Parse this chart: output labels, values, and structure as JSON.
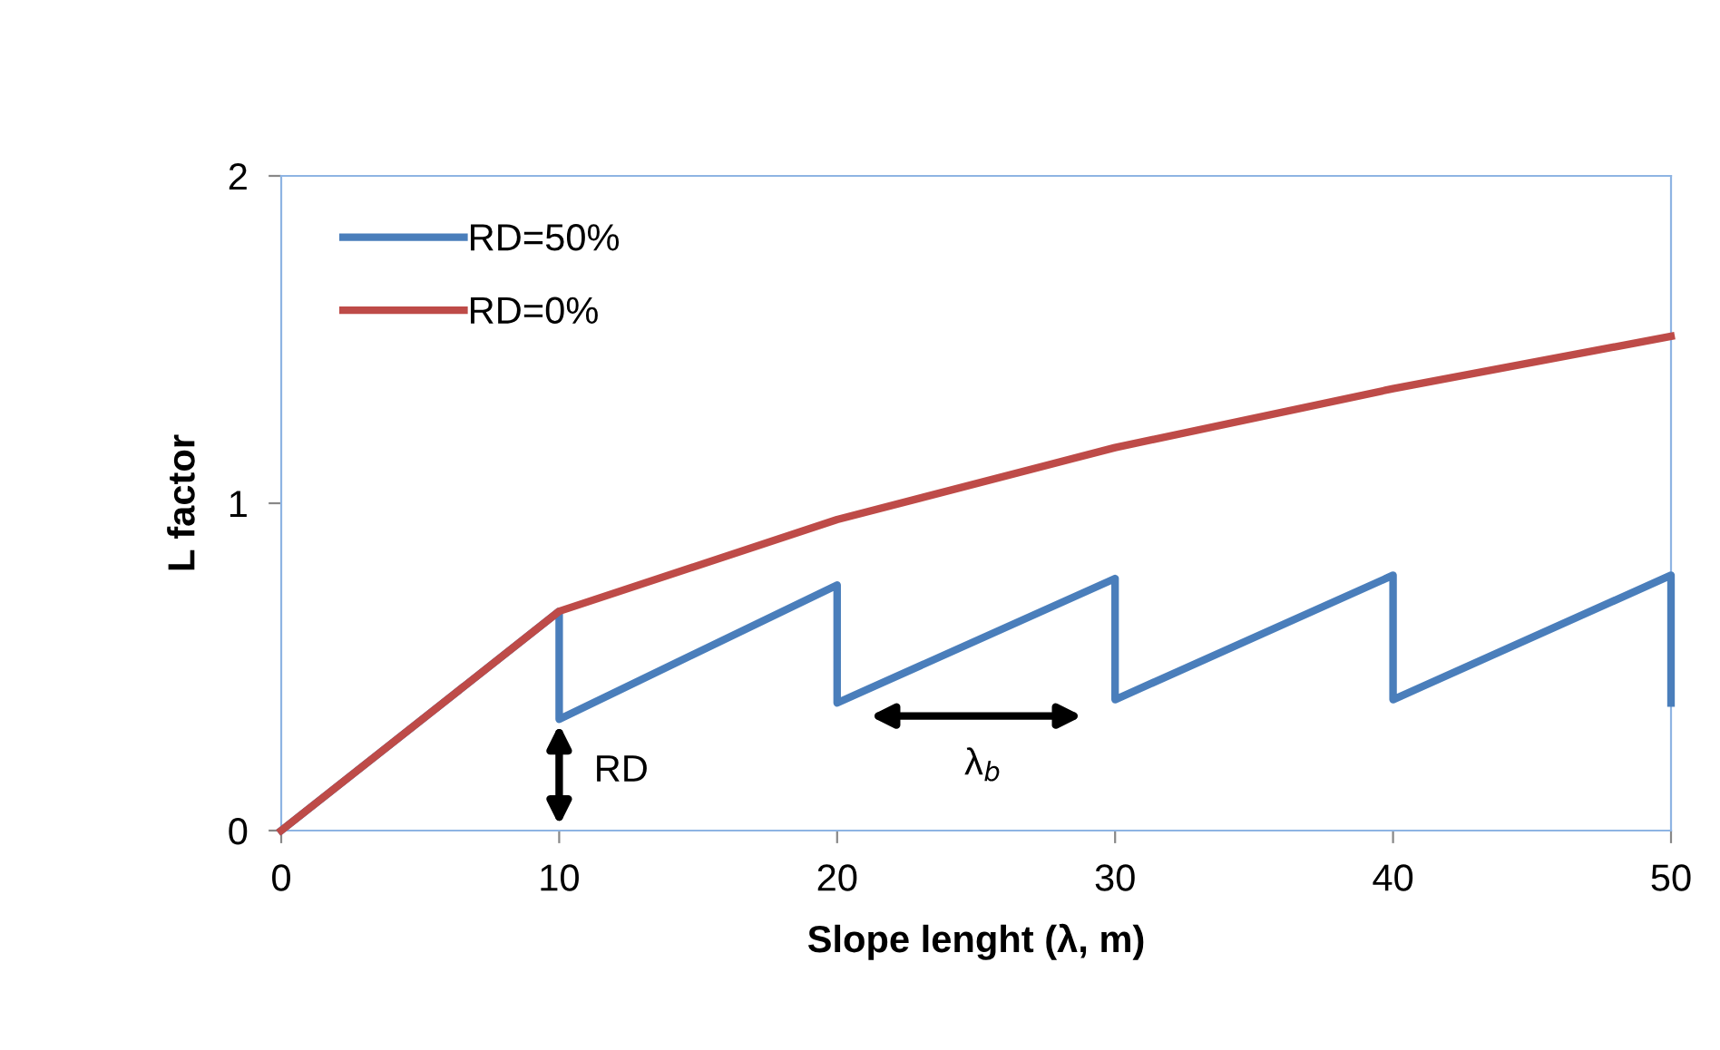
{
  "chart_data": {
    "type": "line",
    "xlabel": "Slope lenght (λ, m)",
    "ylabel": "L factor",
    "xlim": [
      0,
      50
    ],
    "ylim": [
      0,
      2
    ],
    "xticks": [
      0,
      10,
      20,
      30,
      40,
      50
    ],
    "yticks": [
      0,
      1,
      2
    ],
    "grid": false,
    "legend": "top left",
    "marker": "none",
    "line_style": "solid",
    "series": [
      {
        "name": "RD=50%",
        "color": "#4a7ebb",
        "x": [
          0,
          10,
          10,
          20,
          20,
          30,
          30,
          40,
          40,
          50,
          50
        ],
        "values": [
          0,
          0.67,
          0.34,
          0.75,
          0.39,
          0.77,
          0.4,
          0.78,
          0.4,
          0.78,
          0.39
        ]
      },
      {
        "name": "RD=0%",
        "color": "#be4b48",
        "x": [
          0,
          10,
          20,
          30,
          40,
          50
        ],
        "values": [
          0,
          0.67,
          0.95,
          1.17,
          1.35,
          1.51
        ]
      }
    ],
    "annotations": [
      "RD",
      "λ$_{b}$"
    ]
  }
}
